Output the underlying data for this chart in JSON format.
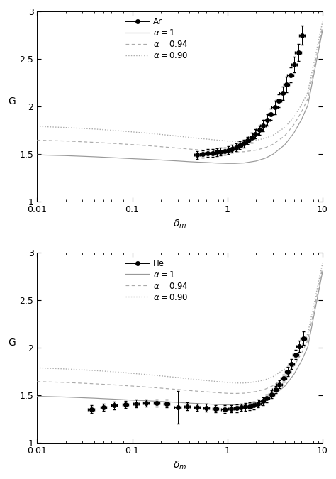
{
  "panel1_gas": "Ar",
  "panel2_gas": "He",
  "xlabel": "$\\delta_m$",
  "ylabel": "G",
  "xlim": [
    0.01,
    10
  ],
  "ylim": [
    1,
    3
  ],
  "yticks": [
    1,
    1.5,
    2,
    2.5,
    3
  ],
  "curve_alpha1_x": [
    0.01,
    0.02,
    0.04,
    0.07,
    0.1,
    0.15,
    0.2,
    0.3,
    0.4,
    0.5,
    0.6,
    0.7,
    0.8,
    1.0,
    1.2,
    1.5,
    2.0,
    2.5,
    3.0,
    4.0,
    5.0,
    6.0,
    7.0,
    10.0
  ],
  "curve_alpha1_y": [
    1.49,
    1.482,
    1.47,
    1.458,
    1.45,
    1.442,
    1.436,
    1.426,
    1.418,
    1.413,
    1.41,
    1.406,
    1.403,
    1.4,
    1.4,
    1.405,
    1.425,
    1.455,
    1.495,
    1.595,
    1.72,
    1.86,
    2.01,
    2.8
  ],
  "curve_alpha094_x": [
    0.01,
    0.02,
    0.04,
    0.07,
    0.1,
    0.15,
    0.2,
    0.3,
    0.4,
    0.5,
    0.6,
    0.7,
    0.8,
    1.0,
    1.2,
    1.5,
    2.0,
    2.5,
    3.0,
    4.0,
    5.0,
    6.0,
    7.0,
    10.0
  ],
  "curve_alpha094_y": [
    1.645,
    1.636,
    1.622,
    1.608,
    1.598,
    1.586,
    1.576,
    1.562,
    1.551,
    1.543,
    1.538,
    1.532,
    1.528,
    1.522,
    1.52,
    1.523,
    1.54,
    1.566,
    1.6,
    1.69,
    1.808,
    1.94,
    2.08,
    2.84
  ],
  "curve_alpha090_x": [
    0.01,
    0.02,
    0.04,
    0.07,
    0.1,
    0.15,
    0.2,
    0.3,
    0.4,
    0.5,
    0.6,
    0.7,
    0.8,
    1.0,
    1.2,
    1.5,
    2.0,
    2.5,
    3.0,
    4.0,
    5.0,
    6.0,
    7.0,
    10.0
  ],
  "curve_alpha090_y": [
    1.79,
    1.778,
    1.762,
    1.745,
    1.732,
    1.717,
    1.705,
    1.688,
    1.674,
    1.664,
    1.657,
    1.65,
    1.644,
    1.636,
    1.63,
    1.63,
    1.643,
    1.665,
    1.695,
    1.778,
    1.888,
    2.015,
    2.15,
    2.89
  ],
  "ar_x": [
    0.48,
    0.55,
    0.62,
    0.7,
    0.77,
    0.85,
    0.93,
    1.02,
    1.12,
    1.23,
    1.35,
    1.48,
    1.63,
    1.79,
    1.97,
    2.16,
    2.37,
    2.61,
    2.87,
    3.15,
    3.46,
    3.8,
    4.18,
    4.59,
    5.05,
    5.55,
    6.1
  ],
  "ar_y": [
    1.49,
    1.5,
    1.51,
    1.51,
    1.52,
    1.525,
    1.53,
    1.54,
    1.555,
    1.57,
    1.59,
    1.61,
    1.64,
    1.67,
    1.71,
    1.75,
    1.8,
    1.86,
    1.92,
    1.99,
    2.06,
    2.14,
    2.23,
    2.33,
    2.44,
    2.57,
    2.75
  ],
  "ar_yerr": [
    0.04,
    0.04,
    0.04,
    0.04,
    0.04,
    0.04,
    0.04,
    0.04,
    0.04,
    0.04,
    0.04,
    0.04,
    0.04,
    0.05,
    0.05,
    0.05,
    0.06,
    0.06,
    0.06,
    0.07,
    0.07,
    0.07,
    0.08,
    0.08,
    0.08,
    0.09,
    0.1
  ],
  "he_x": [
    0.037,
    0.05,
    0.065,
    0.085,
    0.11,
    0.14,
    0.18,
    0.23,
    0.3,
    0.38,
    0.48,
    0.6,
    0.75,
    0.93,
    1.1,
    1.25,
    1.4,
    1.55,
    1.7,
    1.9,
    2.1,
    2.35,
    2.6,
    2.9,
    3.2,
    3.5,
    3.9,
    4.3,
    4.7,
    5.2,
    5.7,
    6.3
  ],
  "he_y": [
    1.355,
    1.375,
    1.395,
    1.405,
    1.415,
    1.42,
    1.42,
    1.415,
    1.375,
    1.385,
    1.375,
    1.37,
    1.36,
    1.355,
    1.36,
    1.365,
    1.375,
    1.38,
    1.385,
    1.395,
    1.415,
    1.44,
    1.47,
    1.51,
    1.56,
    1.615,
    1.68,
    1.75,
    1.83,
    1.93,
    2.02,
    2.1
  ],
  "he_yerr": [
    0.04,
    0.04,
    0.04,
    0.04,
    0.04,
    0.04,
    0.04,
    0.04,
    0.17,
    0.04,
    0.04,
    0.04,
    0.04,
    0.04,
    0.04,
    0.04,
    0.04,
    0.04,
    0.04,
    0.04,
    0.04,
    0.04,
    0.04,
    0.04,
    0.04,
    0.04,
    0.04,
    0.05,
    0.05,
    0.05,
    0.06,
    0.07
  ],
  "color_alpha1": "#999999",
  "color_alpha094": "#aaaaaa",
  "color_alpha090": "#aaaaaa",
  "dot_color": "#000000",
  "bg_color": "#ffffff"
}
